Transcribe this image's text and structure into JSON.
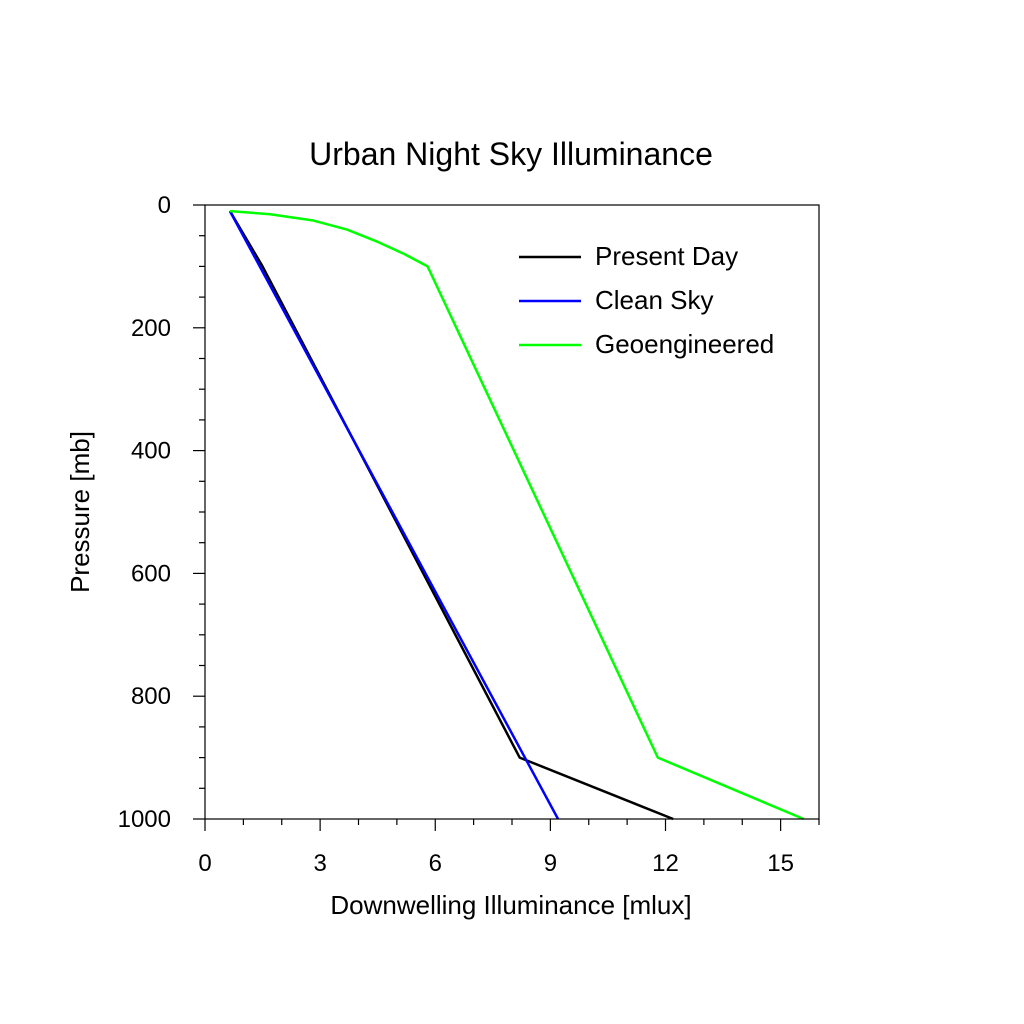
{
  "chart_data": {
    "type": "line",
    "title": "Urban Night Sky Illuminance",
    "xlabel": "Downwelling Illuminance [mlux]",
    "ylabel": "Pressure [mb]",
    "xlim": [
      0,
      16
    ],
    "ylim": [
      0,
      1000
    ],
    "y_inverted": true,
    "x_ticks": [
      0,
      3,
      6,
      9,
      12,
      15
    ],
    "y_ticks": [
      0,
      200,
      400,
      600,
      800,
      1000
    ],
    "grid": false,
    "legend_position": "top-right",
    "series": [
      {
        "name": "Present Day",
        "color": "#000000",
        "points": [
          [
            0.65,
            10
          ],
          [
            1.5,
            100
          ],
          [
            8.2,
            900
          ],
          [
            12.2,
            1000
          ]
        ]
      },
      {
        "name": "Clean Sky",
        "color": "#0000ff",
        "points": [
          [
            0.65,
            10
          ],
          [
            9.2,
            1000
          ]
        ]
      },
      {
        "name": "Geoengineered",
        "color": "#00ff00",
        "points": [
          [
            0.65,
            10
          ],
          [
            1.7,
            15
          ],
          [
            2.8,
            25
          ],
          [
            3.7,
            40
          ],
          [
            4.5,
            60
          ],
          [
            5.2,
            80
          ],
          [
            5.8,
            100
          ],
          [
            11.8,
            900
          ],
          [
            15.6,
            1000
          ]
        ]
      }
    ]
  }
}
